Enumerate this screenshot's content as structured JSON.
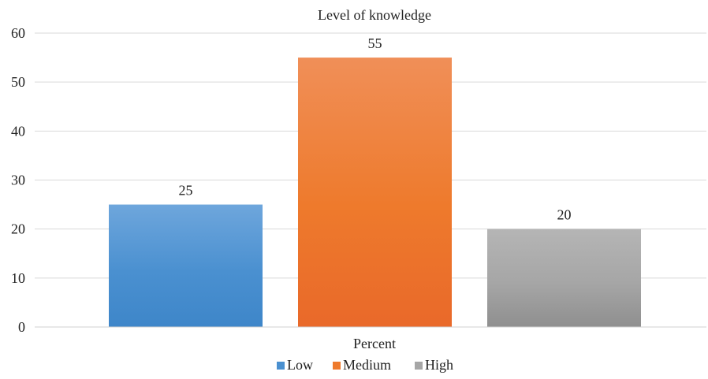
{
  "chart_data": {
    "type": "bar",
    "title": "Level of knowledge",
    "xlabel": "Percent",
    "ylabel": "",
    "ylim": [
      0,
      60
    ],
    "yticks": [
      0,
      10,
      20,
      30,
      40,
      50,
      60
    ],
    "grid": true,
    "legend_position": "bottom",
    "categories": [
      "Percent"
    ],
    "series": [
      {
        "name": "Low",
        "values": [
          25
        ],
        "color": "#4A90D0",
        "color_light": "#6EA6DC",
        "color_dark": "#3E86C9"
      },
      {
        "name": "Medium",
        "values": [
          55
        ],
        "color": "#EE7A2C",
        "color_light": "#F08F58",
        "color_dark": "#E9692A"
      },
      {
        "name": "High",
        "values": [
          20
        ],
        "color": "#A6A6A6",
        "color_light": "#B5B5B5",
        "color_dark": "#8F8F8F"
      }
    ],
    "data_labels": [
      "25",
      "55",
      "20"
    ]
  }
}
